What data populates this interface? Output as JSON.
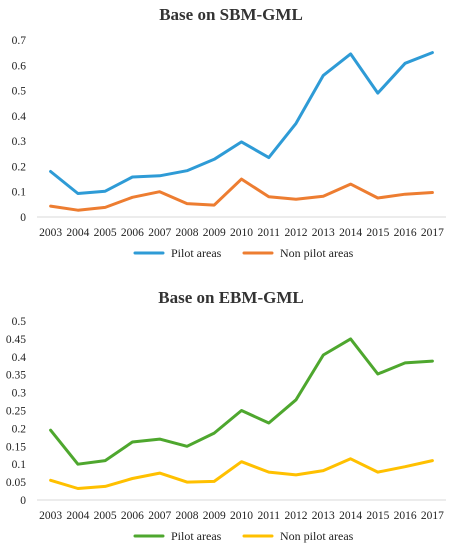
{
  "chart_data": [
    {
      "type": "line",
      "title": "Base on SBM-GML",
      "xlabel": "",
      "ylabel": "",
      "categories": [
        "2003",
        "2004",
        "2005",
        "2006",
        "2007",
        "2008",
        "2009",
        "2010",
        "2011",
        "2012",
        "2013",
        "2014",
        "2015",
        "2016",
        "2017"
      ],
      "ylim": [
        0,
        0.7
      ],
      "yticks": [
        "0",
        "0.1",
        "0.2",
        "0.3",
        "0.4",
        "0.5",
        "0.6",
        "0.7"
      ],
      "yticks_values": [
        0,
        0.1,
        0.2,
        0.3,
        0.4,
        0.5,
        0.6,
        0.7
      ],
      "grid": false,
      "legend_position": "bottom",
      "series": [
        {
          "name": "Pilot areas",
          "color": "#2E9BD6",
          "values": [
            0.18,
            0.093,
            0.102,
            0.158,
            0.163,
            0.183,
            0.228,
            0.297,
            0.235,
            0.37,
            0.56,
            0.645,
            0.49,
            0.608,
            0.65
          ]
        },
        {
          "name": "Non pilot areas",
          "color": "#ED7D31",
          "values": [
            0.043,
            0.027,
            0.038,
            0.078,
            0.1,
            0.053,
            0.047,
            0.15,
            0.08,
            0.07,
            0.082,
            0.13,
            0.075,
            0.09,
            0.097
          ]
        }
      ]
    },
    {
      "type": "line",
      "title": "Base on EBM-GML",
      "xlabel": "",
      "ylabel": "",
      "categories": [
        "2003",
        "2004",
        "2005",
        "2006",
        "2007",
        "2008",
        "2009",
        "2010",
        "2011",
        "2012",
        "2013",
        "2014",
        "2015",
        "2016",
        "2017"
      ],
      "ylim": [
        0,
        0.5
      ],
      "yticks": [
        "0",
        "0.05",
        "0.1",
        "0.15",
        "0.2",
        "0.25",
        "0.3",
        "0.35",
        "0.4",
        "0.45",
        "0.5"
      ],
      "yticks_values": [
        0,
        0.05,
        0.1,
        0.15,
        0.2,
        0.25,
        0.3,
        0.35,
        0.4,
        0.45,
        0.5
      ],
      "grid": false,
      "legend_position": "bottom",
      "series": [
        {
          "name": "Pilot areas",
          "color": "#4EA72E",
          "values": [
            0.195,
            0.1,
            0.11,
            0.162,
            0.17,
            0.15,
            0.187,
            0.25,
            0.215,
            0.28,
            0.405,
            0.45,
            0.352,
            0.383,
            0.388
          ]
        },
        {
          "name": "Non pilot areas",
          "color": "#FFC000",
          "values": [
            0.055,
            0.032,
            0.038,
            0.06,
            0.075,
            0.05,
            0.052,
            0.107,
            0.078,
            0.07,
            0.082,
            0.115,
            0.078,
            0.093,
            0.11
          ]
        }
      ]
    }
  ]
}
